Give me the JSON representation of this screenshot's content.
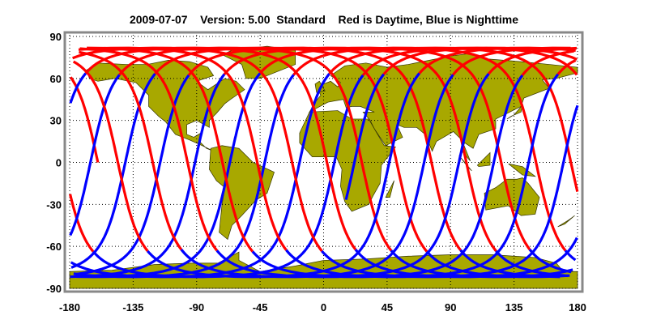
{
  "title": "2009-07-07    Version: 5.00  Standard    Red is Daytime, Blue is Nighttime",
  "colors": {
    "land": "#a8a800",
    "land_outline": "#333300",
    "day": "#ff0000",
    "night": "#0000ff",
    "frame": "#888888"
  },
  "chart_data": {
    "type": "map",
    "projection": "equirectangular",
    "x_ticks": [
      "-180",
      "-135",
      "-90",
      "-45",
      "0",
      "45",
      "90",
      "135",
      "180"
    ],
    "y_ticks": [
      "90",
      "60",
      "30",
      "0",
      "-30",
      "-60",
      "-90"
    ],
    "xlim": [
      -180,
      180
    ],
    "ylim": [
      -90,
      90
    ],
    "grid": "dotted",
    "legend": "Red is Daytime, Blue is Nighttime",
    "series": [
      {
        "name": "Daytime",
        "color": "#ff0000"
      },
      {
        "name": "Nighttime",
        "color": "#0000ff"
      }
    ]
  }
}
